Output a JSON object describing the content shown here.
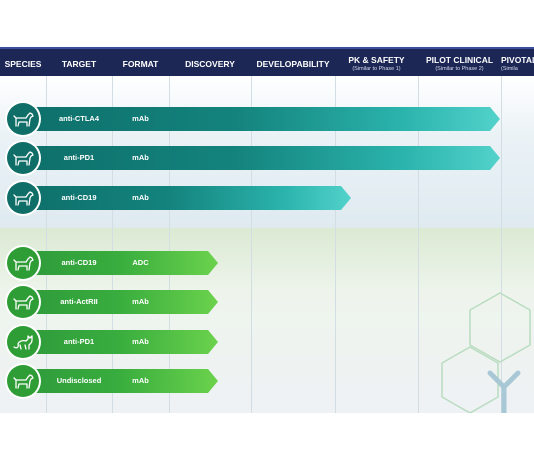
{
  "header": {
    "columns": [
      {
        "title": "SPECIES",
        "subtitle": ""
      },
      {
        "title": "TARGET",
        "subtitle": ""
      },
      {
        "title": "FORMAT",
        "subtitle": ""
      },
      {
        "title": "DISCOVERY",
        "subtitle": ""
      },
      {
        "title": "DEVELOPABILITY",
        "subtitle": ""
      },
      {
        "title": "PK & SAFETY",
        "subtitle": "(Similar to Phase 1)"
      },
      {
        "title": "PILOT CLINICAL",
        "subtitle": "(Similar to Phase 2)"
      },
      {
        "title": "PIVOTAL",
        "subtitle": "(Simila"
      }
    ]
  },
  "colors": {
    "header_bg": "#1c2756",
    "teal_program": "#14837d",
    "green_program": "#39ad3e"
  },
  "programs": [
    {
      "species_icon": "dog-icon",
      "target": "anti-CTLA4",
      "format": "mAb",
      "group": "teal",
      "stage": "Pilot Clinical"
    },
    {
      "species_icon": "dog-icon",
      "target": "anti-PD1",
      "format": "mAb",
      "group": "teal",
      "stage": "Pilot Clinical"
    },
    {
      "species_icon": "dog-icon",
      "target": "anti-CD19",
      "format": "mAb",
      "group": "teal",
      "stage": "PK & Safety"
    },
    {
      "species_icon": "dog-icon",
      "target": "anti-CD19",
      "format": "ADC",
      "group": "green",
      "stage": "Discovery"
    },
    {
      "species_icon": "dog-icon",
      "target": "anti-ActRII",
      "format": "mAb",
      "group": "green",
      "stage": "Discovery"
    },
    {
      "species_icon": "cat-icon",
      "target": "anti-PD1",
      "format": "mAb",
      "group": "green",
      "stage": "Discovery"
    },
    {
      "species_icon": "dog-icon",
      "target": "Undisclosed",
      "format": "mAb",
      "group": "green",
      "stage": "Discovery"
    }
  ]
}
